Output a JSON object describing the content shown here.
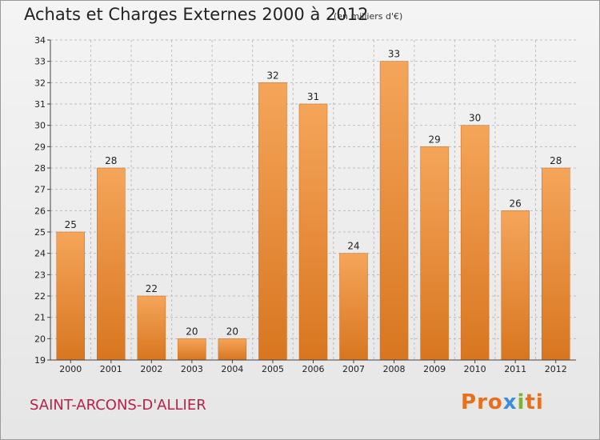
{
  "header": {
    "title": "Achats et Charges Externes 2000 à 2012",
    "subtitle": "(en milliers d'€)"
  },
  "footer": {
    "location": "SAINT-ARCONS-D'ALLIER",
    "logo_text": "Proxiti",
    "logo_letters": [
      {
        "ch": "P",
        "color": "#e8701a"
      },
      {
        "ch": "r",
        "color": "#e8701a"
      },
      {
        "ch": "o",
        "color": "#e8701a"
      },
      {
        "ch": "x",
        "color": "#3b8fd9"
      },
      {
        "ch": "i",
        "color": "#7ab32e"
      },
      {
        "ch": "t",
        "color": "#e8701a"
      },
      {
        "ch": "i",
        "color": "#e8701a"
      }
    ]
  },
  "colors": {
    "bar_top": "#f5a55a",
    "bar_bottom": "#d8761f",
    "grid": "#bdbdbd",
    "axis": "#444444",
    "location_text": "#b5224a"
  },
  "chart_data": {
    "type": "bar",
    "categories": [
      "2000",
      "2001",
      "2002",
      "2003",
      "2004",
      "2005",
      "2006",
      "2007",
      "2008",
      "2009",
      "2010",
      "2011",
      "2012"
    ],
    "values": [
      25,
      28,
      22,
      20,
      20,
      32,
      31,
      24,
      33,
      29,
      30,
      26,
      28
    ],
    "data_labels": [
      "25",
      "28",
      "22",
      "20",
      "20",
      "32",
      "31",
      "24",
      "33",
      "29",
      "30",
      "26",
      "28"
    ],
    "title": "Achats et Charges Externes 2000 à 2012",
    "subtitle": "(en milliers d'€)",
    "xlabel": "",
    "ylabel": "",
    "ylim": [
      19,
      34
    ],
    "yticks": [
      19,
      20,
      21,
      22,
      23,
      24,
      25,
      26,
      27,
      28,
      29,
      30,
      31,
      32,
      33,
      34
    ],
    "grid": true,
    "legend": "none"
  }
}
